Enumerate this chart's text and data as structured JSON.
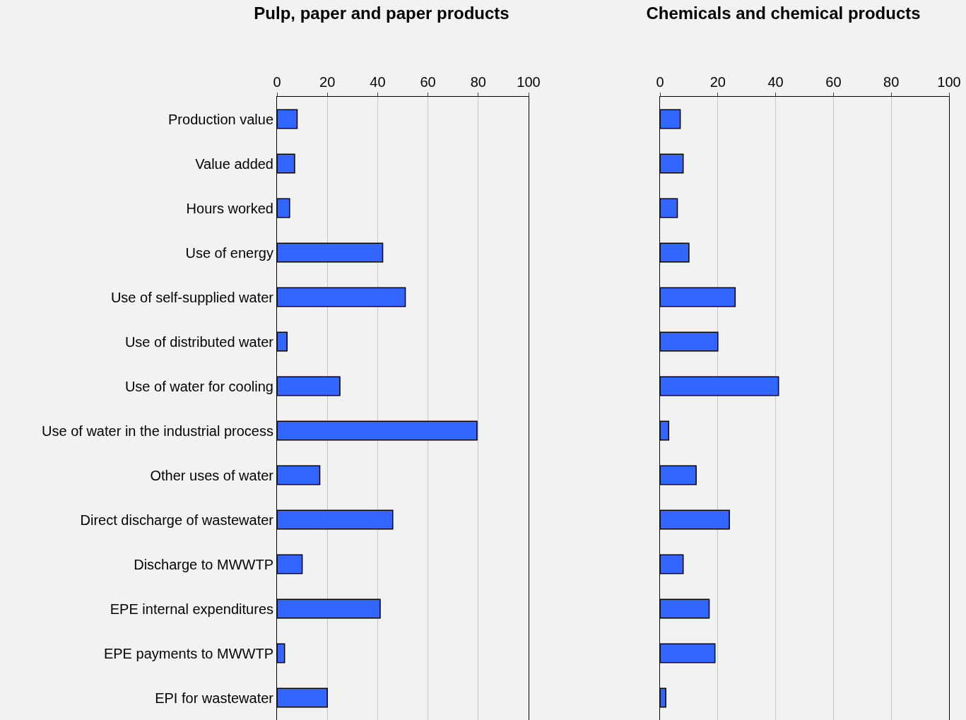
{
  "chart_data": [
    {
      "type": "bar",
      "orientation": "horizontal",
      "title": "Pulp, paper and paper products",
      "categories": [
        "Production value",
        "Value added",
        "Hours worked",
        "Use of energy",
        "Use of self-supplied water",
        "Use of distributed water",
        "Use of water for cooling",
        "Use of water in the industrial process",
        "Other uses of water",
        "Direct discharge of wastewater",
        "Discharge to MWWTP",
        "EPE internal expenditures",
        "EPE payments to MWWTP",
        "EPI for wastewater"
      ],
      "values": [
        8,
        7,
        5,
        42,
        51,
        4,
        25,
        79.5,
        17,
        46,
        10,
        41,
        3,
        20
      ],
      "color": "#3366ff",
      "xlim": [
        0,
        100
      ],
      "xticks": [
        0,
        20,
        40,
        60,
        80,
        100
      ],
      "grid": "x"
    },
    {
      "type": "bar",
      "orientation": "horizontal",
      "title": "Chemicals and chemical products",
      "categories": [
        null,
        null,
        null,
        null,
        null,
        null,
        null,
        null,
        null,
        null,
        null,
        null,
        null,
        null
      ],
      "values": [
        7,
        8,
        6,
        10,
        26,
        20,
        41,
        3,
        12.5,
        24,
        8,
        17,
        19,
        2
      ],
      "color": "#3366ff",
      "xlim": [
        0,
        100
      ],
      "xticks": [
        0,
        20,
        40,
        60,
        80,
        100
      ],
      "grid": "x",
      "tick_labels": "x"
    }
  ]
}
